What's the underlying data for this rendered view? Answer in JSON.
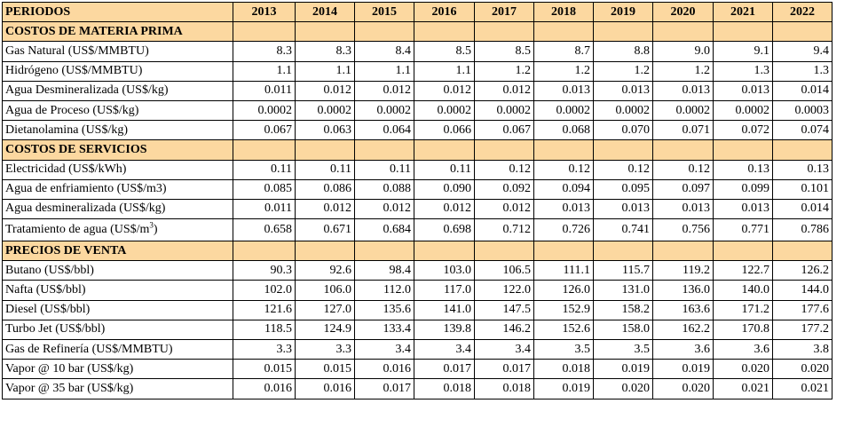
{
  "header": {
    "label": "PERIODOS",
    "years": [
      "2013",
      "2014",
      "2015",
      "2016",
      "2017",
      "2018",
      "2019",
      "2020",
      "2021",
      "2022"
    ]
  },
  "sections": [
    {
      "title": "COSTOS DE MATERIA PRIMA",
      "rows": [
        {
          "label": "Gas Natural (US$/MMBTU)",
          "values": [
            "8.3",
            "8.3",
            "8.4",
            "8.5",
            "8.5",
            "8.7",
            "8.8",
            "9.0",
            "9.1",
            "9.4"
          ]
        },
        {
          "label": "Hidrógeno (US$/MMBTU)",
          "values": [
            "1.1",
            "1.1",
            "1.1",
            "1.1",
            "1.2",
            "1.2",
            "1.2",
            "1.2",
            "1.3",
            "1.3"
          ]
        },
        {
          "label": "Agua Desmineralizada (US$/kg)",
          "values": [
            "0.011",
            "0.012",
            "0.012",
            "0.012",
            "0.012",
            "0.013",
            "0.013",
            "0.013",
            "0.013",
            "0.014"
          ]
        },
        {
          "label": "Agua de Proceso (US$/kg)",
          "values": [
            "0.0002",
            "0.0002",
            "0.0002",
            "0.0002",
            "0.0002",
            "0.0002",
            "0.0002",
            "0.0002",
            "0.0002",
            "0.0003"
          ]
        },
        {
          "label": "Dietanolamina (US$/kg)",
          "values": [
            "0.067",
            "0.063",
            "0.064",
            "0.066",
            "0.067",
            "0.068",
            "0.070",
            "0.071",
            "0.072",
            "0.074"
          ]
        }
      ]
    },
    {
      "title": "COSTOS DE SERVICIOS",
      "rows": [
        {
          "label": "Electricidad (US$/kWh)",
          "values": [
            "0.11",
            "0.11",
            "0.11",
            "0.11",
            "0.12",
            "0.12",
            "0.12",
            "0.12",
            "0.13",
            "0.13"
          ]
        },
        {
          "label": "Agua de enfriamiento (US$/m3)",
          "values": [
            "0.085",
            "0.086",
            "0.088",
            "0.090",
            "0.092",
            "0.094",
            "0.095",
            "0.097",
            "0.099",
            "0.101"
          ]
        },
        {
          "label": "Agua desmineralizada (US$/kg)",
          "values": [
            "0.011",
            "0.012",
            "0.012",
            "0.012",
            "0.012",
            "0.013",
            "0.013",
            "0.013",
            "0.013",
            "0.014"
          ]
        },
        {
          "label": "Tratamiento de agua (US$/m",
          "label_sup": "3",
          "label_tail": ")",
          "values": [
            "0.658",
            "0.671",
            "0.684",
            "0.698",
            "0.712",
            "0.726",
            "0.741",
            "0.756",
            "0.771",
            "0.786"
          ]
        }
      ]
    },
    {
      "title": "PRECIOS DE VENTA",
      "rows": [
        {
          "label": "Butano (US$/bbl)",
          "values": [
            "90.3",
            "92.6",
            "98.4",
            "103.0",
            "106.5",
            "111.1",
            "115.7",
            "119.2",
            "122.7",
            "126.2"
          ]
        },
        {
          "label": "Nafta (US$/bbl)",
          "values": [
            "102.0",
            "106.0",
            "112.0",
            "117.0",
            "122.0",
            "126.0",
            "131.0",
            "136.0",
            "140.0",
            "144.0"
          ]
        },
        {
          "label": "Diesel (US$/bbl)",
          "values": [
            "121.6",
            "127.0",
            "135.6",
            "141.0",
            "147.5",
            "152.9",
            "158.2",
            "163.6",
            "171.2",
            "177.6"
          ]
        },
        {
          "label": "Turbo Jet (US$/bbl)",
          "values": [
            "118.5",
            "124.9",
            "133.4",
            "139.8",
            "146.2",
            "152.6",
            "158.0",
            "162.2",
            "170.8",
            "177.2"
          ]
        },
        {
          "label": "Gas de Refinería (US$/MMBTU)",
          "values": [
            "3.3",
            "3.3",
            "3.4",
            "3.4",
            "3.4",
            "3.5",
            "3.5",
            "3.6",
            "3.6",
            "3.8"
          ]
        },
        {
          "label": "Vapor @ 10 bar (US$/kg)",
          "values": [
            "0.015",
            "0.015",
            "0.016",
            "0.017",
            "0.017",
            "0.018",
            "0.019",
            "0.019",
            "0.020",
            "0.020"
          ]
        },
        {
          "label": "Vapor @ 35 bar (US$/kg)",
          "values": [
            "0.016",
            "0.016",
            "0.017",
            "0.018",
            "0.018",
            "0.019",
            "0.020",
            "0.020",
            "0.021",
            "0.021"
          ]
        }
      ]
    }
  ]
}
